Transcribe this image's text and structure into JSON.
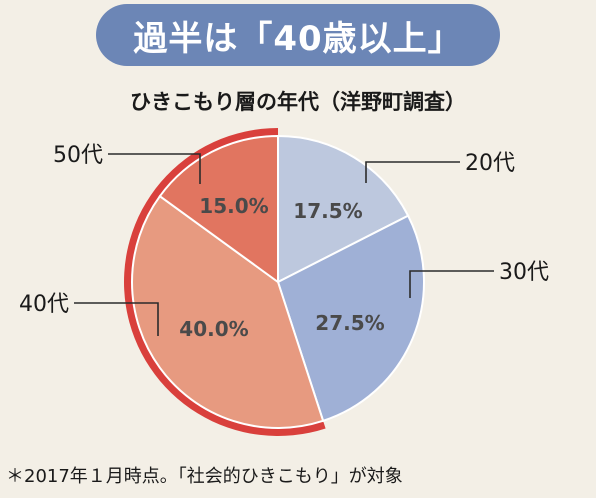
{
  "banner": {
    "title": "過半は「40歳以上」"
  },
  "chart_data": {
    "type": "pie",
    "title": "ひきこもり層の年代（洋野町調査）",
    "slices": [
      {
        "label": "20代",
        "value": 17.5,
        "value_text": "17.5%",
        "color": "#bdc8de"
      },
      {
        "label": "30代",
        "value": 27.5,
        "value_text": "27.5%",
        "color": "#9fb0d6"
      },
      {
        "label": "40代",
        "value": 40.0,
        "value_text": "40.0%",
        "color": "#e79a80"
      },
      {
        "label": "50代",
        "value": 15.0,
        "value_text": "15.0%",
        "color": "#e17560"
      }
    ],
    "start": "12 o'clock",
    "direction": "clockwise",
    "highlight_arc": {
      "covers": [
        "40代",
        "50代"
      ],
      "color": "#d9403c"
    }
  },
  "footnote": "＊2017年１月時点。「社会的ひきこもり」が対象"
}
